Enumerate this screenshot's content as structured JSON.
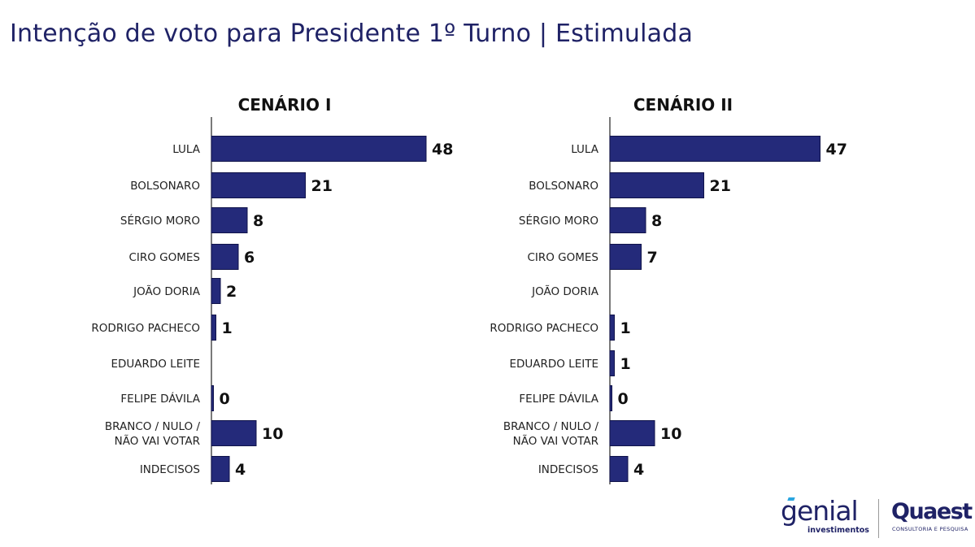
{
  "title": "Intenção de voto para Presidente 1º Turno | Estimulada",
  "chart_data": [
    {
      "type": "bar",
      "orientation": "horizontal",
      "title": "CENÁRIO I",
      "categories": [
        "LULA",
        "BOLSONARO",
        "SÉRGIO MORO",
        "CIRO GOMES",
        "JOÃO DORIA",
        "RODRIGO PACHECO",
        "EDUARDO LEITE",
        "FELIPE DÁVILA",
        "BRANCO / NULO / NÃO VAI VOTAR",
        "INDECISOS"
      ],
      "category_lines": [
        [
          "LULA"
        ],
        [
          "BOLSONARO"
        ],
        [
          "SÉRGIO MORO"
        ],
        [
          "CIRO GOMES"
        ],
        [
          "JOÃO DORIA"
        ],
        [
          "RODRIGO PACHECO"
        ],
        [
          "EDUARDO LEITE"
        ],
        [
          "FELIPE DÁVILA"
        ],
        [
          "BRANCO / NULO /",
          "NÃO VAI VOTAR"
        ],
        [
          "INDECISOS"
        ]
      ],
      "values": [
        48,
        21,
        8,
        6,
        2,
        1,
        null,
        0,
        10,
        4
      ],
      "value_labels": [
        "48",
        "21",
        "8",
        "6",
        "2",
        "1",
        "",
        "0",
        "10",
        "4"
      ],
      "grid": false,
      "legend": "none",
      "color": "#242a7a"
    },
    {
      "type": "bar",
      "orientation": "horizontal",
      "title": "CENÁRIO II",
      "categories": [
        "LULA",
        "BOLSONARO",
        "SÉRGIO MORO",
        "CIRO GOMES",
        "JOÃO DORIA",
        "RODRIGO PACHECO",
        "EDUARDO LEITE",
        "FELIPE DÁVILA",
        "BRANCO / NULO / NÃO VAI VOTAR",
        "INDECISOS"
      ],
      "category_lines": [
        [
          "LULA"
        ],
        [
          "BOLSONARO"
        ],
        [
          "SÉRGIO MORO"
        ],
        [
          "CIRO GOMES"
        ],
        [
          "JOÃO DORIA"
        ],
        [
          "RODRIGO PACHECO"
        ],
        [
          "EDUARDO LEITE"
        ],
        [
          "FELIPE DÁVILA"
        ],
        [
          "BRANCO / NULO /",
          "NÃO VAI VOTAR"
        ],
        [
          "INDECISOS"
        ]
      ],
      "values": [
        47,
        21,
        8,
        7,
        null,
        1,
        1,
        0,
        10,
        4
      ],
      "value_labels": [
        "47",
        "21",
        "8",
        "7",
        "",
        "1",
        "1",
        "0",
        "10",
        "4"
      ],
      "grid": false,
      "legend": "none",
      "color": "#242a7a"
    }
  ],
  "logos": {
    "genial": {
      "word": "genial",
      "sub": "investimentos"
    },
    "quaest": {
      "word": "Quaest",
      "sub": "CONSULTORIA E PESQUISA"
    }
  }
}
